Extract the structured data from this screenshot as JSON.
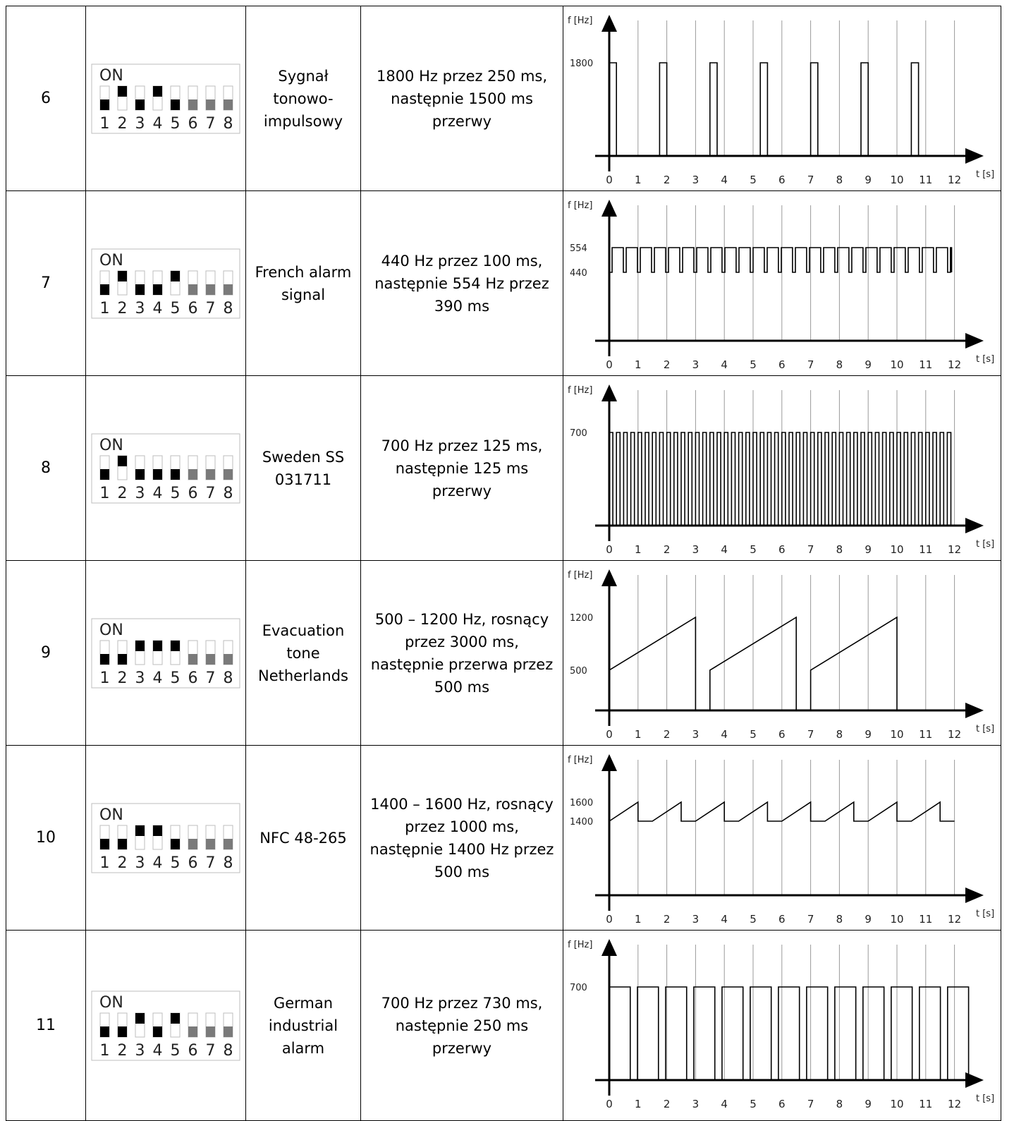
{
  "rows": [
    {
      "number": "6",
      "switches": [
        0,
        1,
        0,
        1,
        0,
        0,
        0,
        0
      ],
      "name": "Sygnał\ntonowo-\nimpulsowy",
      "description": "1800 Hz przez 250 ms,\nnastępnie 1500 ms\nprzerwy",
      "chart_key": 0
    },
    {
      "number": "7",
      "switches": [
        0,
        1,
        0,
        0,
        1,
        0,
        0,
        0
      ],
      "name": "French alarm\nsignal",
      "description": "440 Hz przez 100 ms,\nnastępnie 554 Hz przez\n390 ms",
      "chart_key": 1
    },
    {
      "number": "8",
      "switches": [
        0,
        1,
        0,
        0,
        0,
        0,
        0,
        0
      ],
      "name": "Sweden SS\n031711",
      "description": "700 Hz przez 125 ms,\nnastępnie 125 ms\nprzerwy",
      "chart_key": 2
    },
    {
      "number": "9",
      "switches": [
        0,
        0,
        1,
        1,
        1,
        0,
        0,
        0
      ],
      "name": "Evacuation\ntone\nNetherlands",
      "description": "500 – 1200 Hz,  rosnący\nprzez 3000 ms,\nnastępnie przerwa przez\n500 ms",
      "chart_key": 3
    },
    {
      "number": "10",
      "switches": [
        0,
        0,
        1,
        1,
        0,
        0,
        0,
        0
      ],
      "name": "NFC 48-265",
      "description": "1400 – 1600 Hz, rosnący\nprzez 1000 ms,\nnastępnie 1400 Hz przez\n500 ms",
      "chart_key": 4
    },
    {
      "number": "11",
      "switches": [
        0,
        0,
        1,
        0,
        1,
        0,
        0,
        0
      ],
      "name": "German\nindustrial\nalarm",
      "description": "700 Hz przez 730 ms,\nnastępnie 250 ms\nprzerwy",
      "chart_key": 5
    }
  ],
  "dip": {
    "on_label": "ON",
    "position_labels": [
      "1",
      "2",
      "3",
      "4",
      "5",
      "6",
      "7",
      "8"
    ],
    "colors": {
      "on": "#000000",
      "off_active": "#7a7a7a",
      "frame": "#bdbdbd"
    }
  },
  "axis": {
    "y_label": "f [Hz]",
    "x_label": "t [s]",
    "x_ticks": [
      "0",
      "1",
      "2",
      "3",
      "4",
      "5",
      "6",
      "7",
      "8",
      "9",
      "10",
      "11",
      "12"
    ]
  },
  "chart_data": [
    {
      "type": "line",
      "xlabel": "t [s]",
      "ylabel": "f [Hz]",
      "xlim": [
        0,
        12
      ],
      "y_ticks": [
        1800
      ],
      "grid": true,
      "pattern": "pulse",
      "high": 1800,
      "on_s": 0.25,
      "off_s": 1.5,
      "end_s": 11.0
    },
    {
      "type": "line",
      "xlabel": "t [s]",
      "ylabel": "f [Hz]",
      "xlim": [
        0,
        12
      ],
      "y_ticks": [
        440,
        554
      ],
      "grid": true,
      "pattern": "two_tone",
      "low": 440,
      "high": 554,
      "low_s": 0.1,
      "high_s": 0.39,
      "end_s": 11.9
    },
    {
      "type": "line",
      "xlabel": "t [s]",
      "ylabel": "f [Hz]",
      "xlim": [
        0,
        12
      ],
      "y_ticks": [
        700
      ],
      "grid": true,
      "pattern": "pulse",
      "high": 700,
      "on_s": 0.125,
      "off_s": 0.125,
      "end_s": 11.9
    },
    {
      "type": "line",
      "xlabel": "t [s]",
      "ylabel": "f [Hz]",
      "xlim": [
        0,
        12
      ],
      "y_ticks": [
        500,
        1200
      ],
      "grid": true,
      "pattern": "sweep_gap",
      "low": 500,
      "high": 1200,
      "sweep_s": 3.0,
      "gap_s": 0.5,
      "end_s": 10.0
    },
    {
      "type": "line",
      "xlabel": "t [s]",
      "ylabel": "f [Hz]",
      "xlim": [
        0,
        12
      ],
      "y_ticks": [
        1400,
        1600
      ],
      "grid": true,
      "pattern": "sweep_hold",
      "low": 1400,
      "high": 1600,
      "sweep_s": 1.0,
      "hold_s": 0.5,
      "end_s": 12.0
    },
    {
      "type": "line",
      "xlabel": "t [s]",
      "ylabel": "f [Hz]",
      "xlim": [
        0,
        12
      ],
      "y_ticks": [
        700
      ],
      "grid": true,
      "pattern": "pulse",
      "high": 700,
      "on_s": 0.73,
      "off_s": 0.25,
      "end_s": 11.8
    }
  ]
}
